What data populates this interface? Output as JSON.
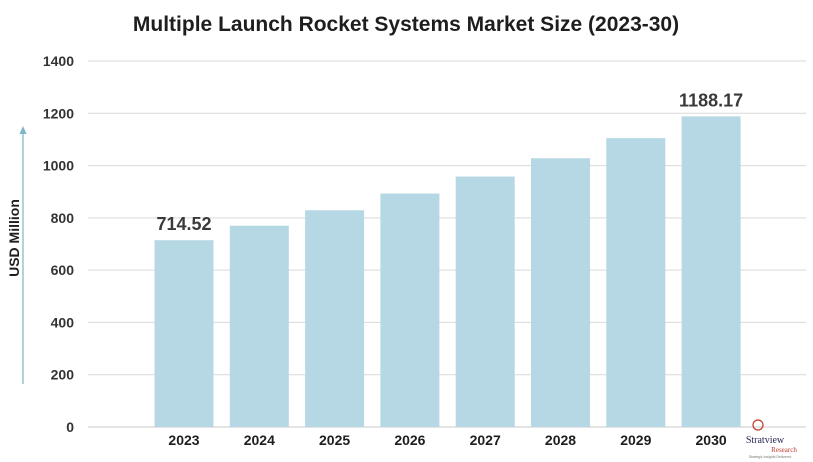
{
  "chart_data": {
    "type": "bar",
    "title": "Multiple Launch Rocket Systems Market Size (2023-30)",
    "ylabel": "USD Million",
    "xlabel": "",
    "categories": [
      "2023",
      "2024",
      "2025",
      "2026",
      "2027",
      "2028",
      "2029",
      "2030"
    ],
    "values": [
      714.52,
      770,
      829,
      893,
      958,
      1028,
      1105,
      1188.17
    ],
    "data_labels": [
      {
        "index": 0,
        "text": "714.52"
      },
      {
        "index": 7,
        "text": "1188.17"
      }
    ],
    "ylim": [
      0,
      1400
    ],
    "yticks": [
      "0",
      "200",
      "400",
      "600",
      "800",
      "1000",
      "1200",
      "1400"
    ],
    "grid": true,
    "bar_color": "#b6d7e4",
    "grid_color": "#d9d9d9",
    "axis_arrow_color": "#7fb6c7"
  },
  "logo": {
    "name": "Stratview",
    "sub": "Research",
    "tagline": "Strategic Insights Delivered"
  }
}
